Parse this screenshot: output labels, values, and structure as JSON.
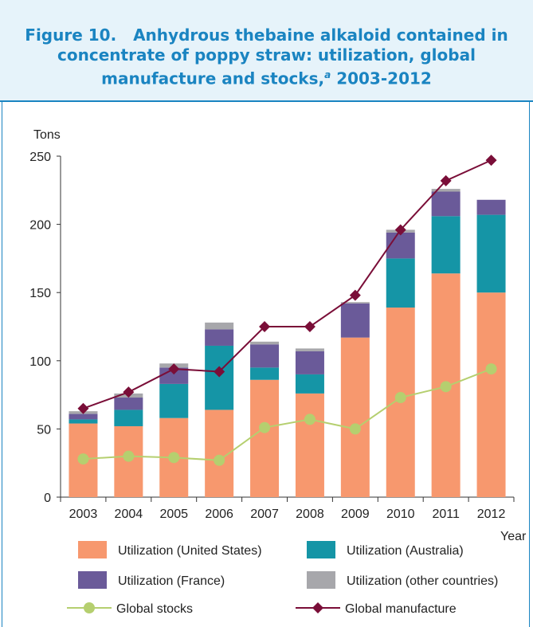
{
  "figure": {
    "label": "Figure 10.",
    "title_main": "Anhydrous thebaine alkaloid contained in concentrate of poppy straw: utilization, global manufacture and stocks,",
    "title_sup": "a",
    "title_years": "2003-2012"
  },
  "colors": {
    "us": "#f7986e",
    "australia": "#1595a6",
    "france": "#6a5a99",
    "other": "#a7a7ab",
    "stocks": "#b5cf6f",
    "manufacture": "#7a0e38",
    "title": "#1a84c1",
    "header_bg": "#e6f3fa"
  },
  "chart_data": {
    "type": "bar",
    "stacked": true,
    "ylabel": "Tons",
    "xlabel": "Year",
    "ylim": [
      0,
      250
    ],
    "yticks": [
      0,
      50,
      100,
      150,
      200,
      250
    ],
    "grid": false,
    "categories": [
      "2003",
      "2004",
      "2005",
      "2006",
      "2007",
      "2008",
      "2009",
      "2010",
      "2011",
      "2012"
    ],
    "series": [
      {
        "name": "Utilization (United States)",
        "key": "us",
        "kind": "bar",
        "values": [
          54,
          52,
          58,
          64,
          86,
          76,
          117,
          139,
          164,
          150
        ]
      },
      {
        "name": "Utilization (Australia)",
        "key": "australia",
        "kind": "bar",
        "values": [
          3,
          12,
          25,
          47,
          9,
          14,
          0,
          36,
          42,
          57
        ]
      },
      {
        "name": "Utilization (France)",
        "key": "france",
        "kind": "bar",
        "values": [
          4,
          9,
          12,
          12,
          17,
          17,
          25,
          19,
          18,
          11
        ]
      },
      {
        "name": "Utilization (other countries)",
        "key": "other",
        "kind": "bar",
        "values": [
          2,
          3,
          3,
          5,
          2,
          2,
          1,
          2,
          2,
          0
        ]
      },
      {
        "name": "Global stocks",
        "key": "stocks",
        "kind": "line",
        "marker": "circle",
        "values": [
          28,
          30,
          29,
          27,
          51,
          57,
          50,
          73,
          81,
          94
        ]
      },
      {
        "name": "Global manufacture",
        "key": "manufacture",
        "kind": "line",
        "marker": "diamond",
        "values": [
          65,
          77,
          94,
          92,
          125,
          125,
          148,
          196,
          232,
          247
        ]
      }
    ]
  }
}
